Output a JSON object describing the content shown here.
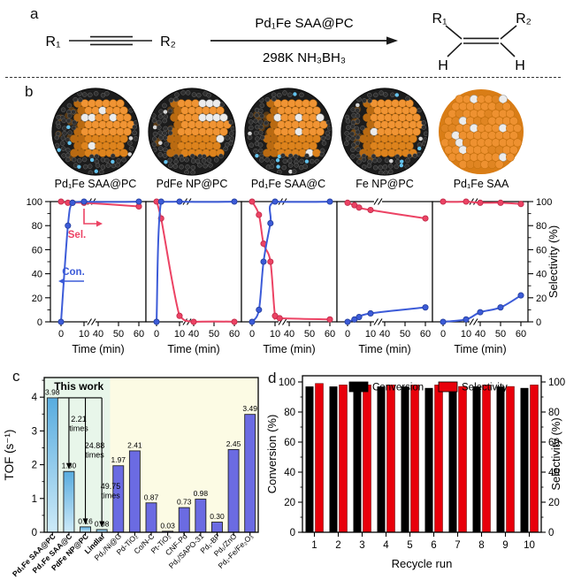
{
  "panel_a": {
    "label": "a",
    "reactant_left": "R₁",
    "reactant_right": "R₂",
    "catalyst": "Pd₁Fe SAA@PC",
    "conditions": "298K  NH₃BH₃",
    "product_r1": "R₁",
    "product_r2": "R₂",
    "product_h_left": "H",
    "product_h_right": "H"
  },
  "panel_b": {
    "label": "b",
    "particles": [
      {
        "name": "Pd₁Fe SAA@PC",
        "type": "caged-saa"
      },
      {
        "name": "PdFe NP@PC",
        "type": "caged-np"
      },
      {
        "name": "Pd₁Fe SAA@C",
        "type": "caged-saa"
      },
      {
        "name": "Fe NP@PC",
        "type": "caged-plain"
      },
      {
        "name": "Pd₁Fe SAA",
        "type": "bare-saa"
      }
    ]
  },
  "panel_c": {
    "label": "c"
  },
  "panel_d": {
    "label": "d"
  },
  "chart_data": [
    {
      "type": "line",
      "panel": "b",
      "xlabel": "Time (min)",
      "ylabel_left": "Conversion (%)",
      "ylabel_right": "Selectivity (%)",
      "xticks": [
        0,
        10,
        40,
        50,
        60
      ],
      "yticks": [
        0,
        20,
        40,
        60,
        80,
        100
      ],
      "axis_break_between": [
        15,
        40
      ],
      "curve_labels": {
        "conversion": "Con.",
        "selectivity": "Sel."
      },
      "subplots": [
        {
          "catalyst": "Pd₁Fe SAA@PC",
          "conversion": {
            "x": [
              0,
              3,
              5,
              10,
              60
            ],
            "y": [
              0,
              80,
              99,
              100,
              100
            ]
          },
          "selectivity": {
            "x": [
              0,
              3,
              5,
              10,
              60
            ],
            "y": [
              100,
              99,
              99,
              99,
              96
            ]
          }
        },
        {
          "catalyst": "PdFe NP@PC",
          "conversion": {
            "x": [
              0,
              2,
              10,
              60
            ],
            "y": [
              0,
              100,
              100,
              100
            ]
          },
          "selectivity": {
            "x": [
              0,
              2,
              10,
              40,
              60
            ],
            "y": [
              100,
              86,
              5,
              0,
              0
            ]
          }
        },
        {
          "catalyst": "Pd₁Fe SAA@C",
          "conversion": {
            "x": [
              0,
              3,
              5,
              8,
              10,
              60
            ],
            "y": [
              0,
              10,
              50,
              82,
              100,
              100
            ]
          },
          "selectivity": {
            "x": [
              0,
              3,
              5,
              8,
              10,
              12,
              60
            ],
            "y": [
              100,
              89,
              65,
              50,
              5,
              3,
              2
            ]
          }
        },
        {
          "catalyst": "Fe NP@PC",
          "conversion": {
            "x": [
              0,
              3,
              5,
              10,
              60
            ],
            "y": [
              0,
              2,
              4,
              7,
              12
            ]
          },
          "selectivity": {
            "x": [
              0,
              3,
              5,
              10,
              60
            ],
            "y": [
              99,
              97,
              95,
              93,
              86
            ]
          }
        },
        {
          "catalyst": "Pd₁Fe SAA",
          "conversion": {
            "x": [
              0,
              10,
              40,
              50,
              60
            ],
            "y": [
              0,
              2,
              8,
              12,
              22
            ]
          },
          "selectivity": {
            "x": [
              0,
              10,
              40,
              50,
              60
            ],
            "y": [
              100,
              100,
              99,
              99,
              98
            ]
          }
        }
      ]
    },
    {
      "type": "bar",
      "panel": "c",
      "ylabel": "TOF (s⁻¹)",
      "ylim": [
        0,
        4.6
      ],
      "yticks": [
        0,
        1,
        2,
        3,
        4
      ],
      "highlight_region_label": "This work",
      "highlight_count": 4,
      "categories": [
        "Pd₁Fe SAA@PC",
        "Pd₁Fe SAA@C",
        "PdFe NP@PC",
        "Lindlar",
        "Pd₁/Ni@G",
        "Pd-TiO₂",
        "Co/N-C",
        "Pt-TiO₂",
        "CNF-Pd",
        "Pd₁/SAPO-31",
        "Pd₁-BP",
        "Pd₁/ZnO",
        "Pd₁-Fe/Fe₂O₃"
      ],
      "values": [
        3.98,
        1.8,
        0.16,
        0.08,
        1.97,
        2.41,
        0.87,
        0.03,
        0.73,
        0.98,
        0.3,
        2.45,
        3.49
      ],
      "value_labels": [
        "3.98",
        "1.80",
        "0.16",
        "0.08",
        "1.97",
        "2.41",
        "0.87",
        "0.03",
        "0.73",
        "0.98",
        "0.30",
        "2.45",
        "3.49"
      ],
      "fold_annotations": [
        {
          "text_value": "2.21",
          "text_unit": "times",
          "target_index": 1
        },
        {
          "text_value": "24.88",
          "text_unit": "times",
          "target_index": 2
        },
        {
          "text_value": "49.75",
          "text_unit": "times",
          "target_index": 3
        }
      ]
    },
    {
      "type": "bar",
      "panel": "d",
      "xlabel": "Recycle run",
      "ylabel_left": "Conversion (%)",
      "ylabel_right": "Selectivity (%)",
      "yticks": [
        0,
        20,
        40,
        60,
        80,
        100
      ],
      "categories": [
        "1",
        "2",
        "3",
        "4",
        "5",
        "6",
        "7",
        "8",
        "9",
        "10"
      ],
      "series": [
        {
          "name": "Conversion",
          "color_key": "legend_black",
          "values": [
            97,
            97,
            97,
            97,
            97,
            96,
            96,
            97,
            97,
            96
          ]
        },
        {
          "name": "Selectivity",
          "color_key": "legend_red",
          "values": [
            99,
            98,
            98,
            98,
            98,
            98,
            97,
            98,
            97,
            98
          ]
        }
      ]
    }
  ],
  "colors": {
    "accent_blue": "#3c5bd8",
    "accent_blue_dark": "#26409f",
    "accent_red": "#ec4364",
    "accent_red_dark": "#c22c4b",
    "bar_blue": "#6b6be2",
    "bar_gradient_top": "#58acdf",
    "bar_gradient_bottom": "#cdeaf8",
    "legend_black": "#000000",
    "legend_red": "#e8000b",
    "region_green": "#e8f6ea",
    "region_yellow": "#fcfbe4",
    "particle_orange": "#ee9130",
    "particle_orange_dark": "#c3700f",
    "particle_cage": "#2f2f2f",
    "particle_dopant_blue": "#64c3ee",
    "particle_white": "#ececec"
  }
}
